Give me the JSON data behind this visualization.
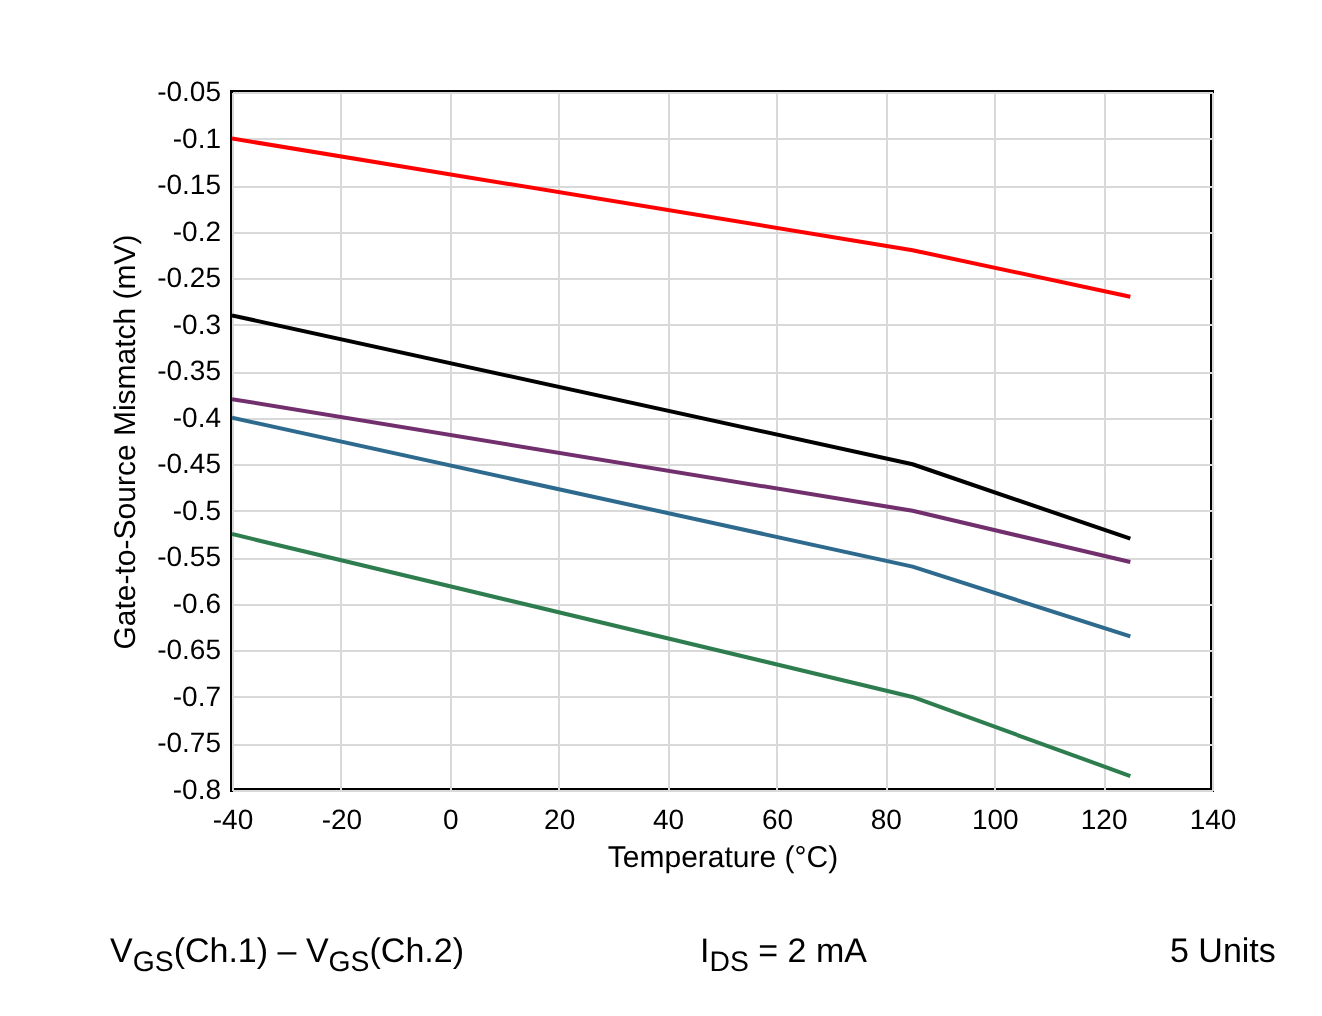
{
  "chart_data": {
    "type": "line",
    "xlabel": "Temperature (°C)",
    "ylabel": "Gate-to-Source Mismatch (mV)",
    "x": [
      -40,
      85,
      125
    ],
    "series": [
      {
        "color": "#ff0000",
        "values": [
          -0.1,
          -0.22,
          -0.27
        ]
      },
      {
        "color": "#000000",
        "values": [
          -0.29,
          -0.45,
          -0.53
        ]
      },
      {
        "color": "#722f6e",
        "values": [
          -0.38,
          -0.5,
          -0.555
        ]
      },
      {
        "color": "#2e6a8e",
        "values": [
          -0.4,
          -0.56,
          -0.635
        ]
      },
      {
        "color": "#2e7d4f",
        "values": [
          -0.525,
          -0.7,
          -0.785
        ]
      }
    ],
    "xlim": [
      -40,
      140
    ],
    "xticks": [
      -40,
      -20,
      0,
      20,
      40,
      60,
      80,
      100,
      120,
      140
    ],
    "ylim": [
      -0.8,
      -0.05
    ],
    "yticks": [
      -0.8,
      -0.75,
      -0.7,
      -0.65,
      -0.6,
      -0.55,
      -0.5,
      -0.45,
      -0.4,
      -0.35,
      -0.3,
      -0.25,
      -0.2,
      -0.15,
      -0.1,
      -0.05
    ],
    "grid": true,
    "legend": false,
    "marker": "none",
    "line_style": "solid",
    "annotations": [
      "V$_{GS}$(Ch.1) – V$_{GS}$(Ch.2)",
      "I$_{DS}$ = 2 mA",
      "5 Units"
    ]
  }
}
